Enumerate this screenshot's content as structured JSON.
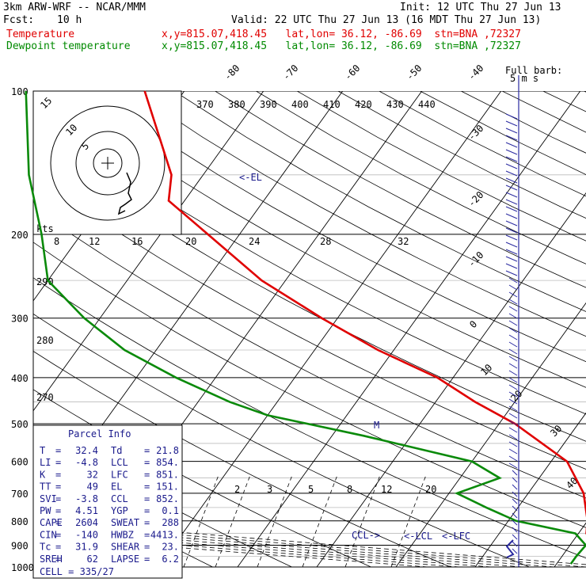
{
  "header": {
    "model": "3km ARW-WRF -- NCAR/MMM",
    "init": "Init: 12 UTC Thu 27 Jun 13",
    "fcst_label": "Fcst:",
    "fcst_value": "10 h",
    "valid": "Valid: 22 UTC Thu 27 Jun 13 (16 MDT Thu 27 Jun 13)",
    "temp_legend": "Temperature",
    "temp_loc": "x,y=815.07,418.45   lat,lon= 36.12, -86.69  stn=BNA ,72327",
    "dew_legend": "Dewpoint temperature",
    "dew_loc": "x,y=815.07,418.45   lat,lon= 36.12, -86.69  stn=BNA ,72327"
  },
  "colors": {
    "temperature": "#e00000",
    "dewpoint": "#0a8a0a",
    "barbs": "#2a2aa0",
    "labels": "#1a1a8c"
  },
  "chart_data": {
    "type": "line",
    "pressure_levels": [
      100,
      200,
      300,
      400,
      500,
      600,
      700,
      800,
      900,
      1000
    ],
    "isotherm_labels": [
      "-80",
      "-70",
      "-60",
      "-50",
      "-40",
      "-30",
      "-20",
      "-10",
      "0",
      "10",
      "20",
      "30",
      "40"
    ],
    "theta_labels": [
      "370",
      "380",
      "390",
      "400",
      "410",
      "420",
      "430",
      "440"
    ],
    "theta_lower_labels": [
      "290",
      "280",
      "270"
    ],
    "wind_scale_labels": [
      "kts",
      "8",
      "12",
      "16",
      "20",
      "24",
      "28",
      "32"
    ],
    "mixing_ratio_labels": [
      "2",
      "3",
      "5",
      "8",
      "12",
      "20"
    ],
    "hodograph_labels": [
      "5",
      "10",
      "15"
    ],
    "barb_legend_1": "Full barb:",
    "barb_legend_2": "5 m s",
    "series": [
      {
        "name": "Temperature",
        "pressure": [
          100,
          150,
          170,
          200,
          250,
          300,
          350,
          400,
          450,
          500,
          600,
          700,
          800,
          850,
          900,
          950,
          985
        ],
        "values": [
          -75,
          -64,
          -62,
          -54,
          -43,
          -32,
          -22,
          -12,
          -5,
          2,
          12,
          17,
          20,
          21,
          23,
          28,
          32.4
        ]
      },
      {
        "name": "Dewpoint temperature",
        "pressure": [
          100,
          150,
          200,
          250,
          300,
          350,
          400,
          450,
          480,
          530,
          600,
          650,
          700,
          750,
          800,
          850,
          900,
          950,
          985
        ],
        "values": [
          -90,
          -82,
          -75,
          -70,
          -62,
          -54,
          -45,
          -36,
          -30,
          -16,
          0,
          5,
          1,
          6,
          11,
          19.6,
          22,
          21.8,
          21.8
        ]
      }
    ],
    "markers": {
      "el": "<-EL",
      "ccl": "CCL->",
      "lcl": "<-LCL",
      "lfc": "<-LFC",
      "m": "M"
    },
    "parcel_info": {
      "title": "Parcel Info",
      "rows": [
        [
          "T",
          "32.4",
          "Td",
          "21.8"
        ],
        [
          "LI",
          "-4.8",
          "LCL",
          "854."
        ],
        [
          "K",
          "32",
          "LFC",
          "851."
        ],
        [
          "TT",
          "49",
          "EL",
          "151."
        ],
        [
          "SVI",
          "-3.8",
          "CCL",
          "852."
        ],
        [
          "PW",
          "4.51",
          "YGP",
          "0.1"
        ],
        [
          "CAPE",
          "2604",
          "SWEAT",
          "288"
        ],
        [
          "CIN",
          "-140",
          "HWBZ",
          "4413."
        ],
        [
          "Tc",
          "31.9",
          "SHEAR",
          "23."
        ],
        [
          "SREH",
          "62",
          "LAPSE",
          "6.2"
        ]
      ],
      "cell": "CELL = 335/27"
    }
  }
}
